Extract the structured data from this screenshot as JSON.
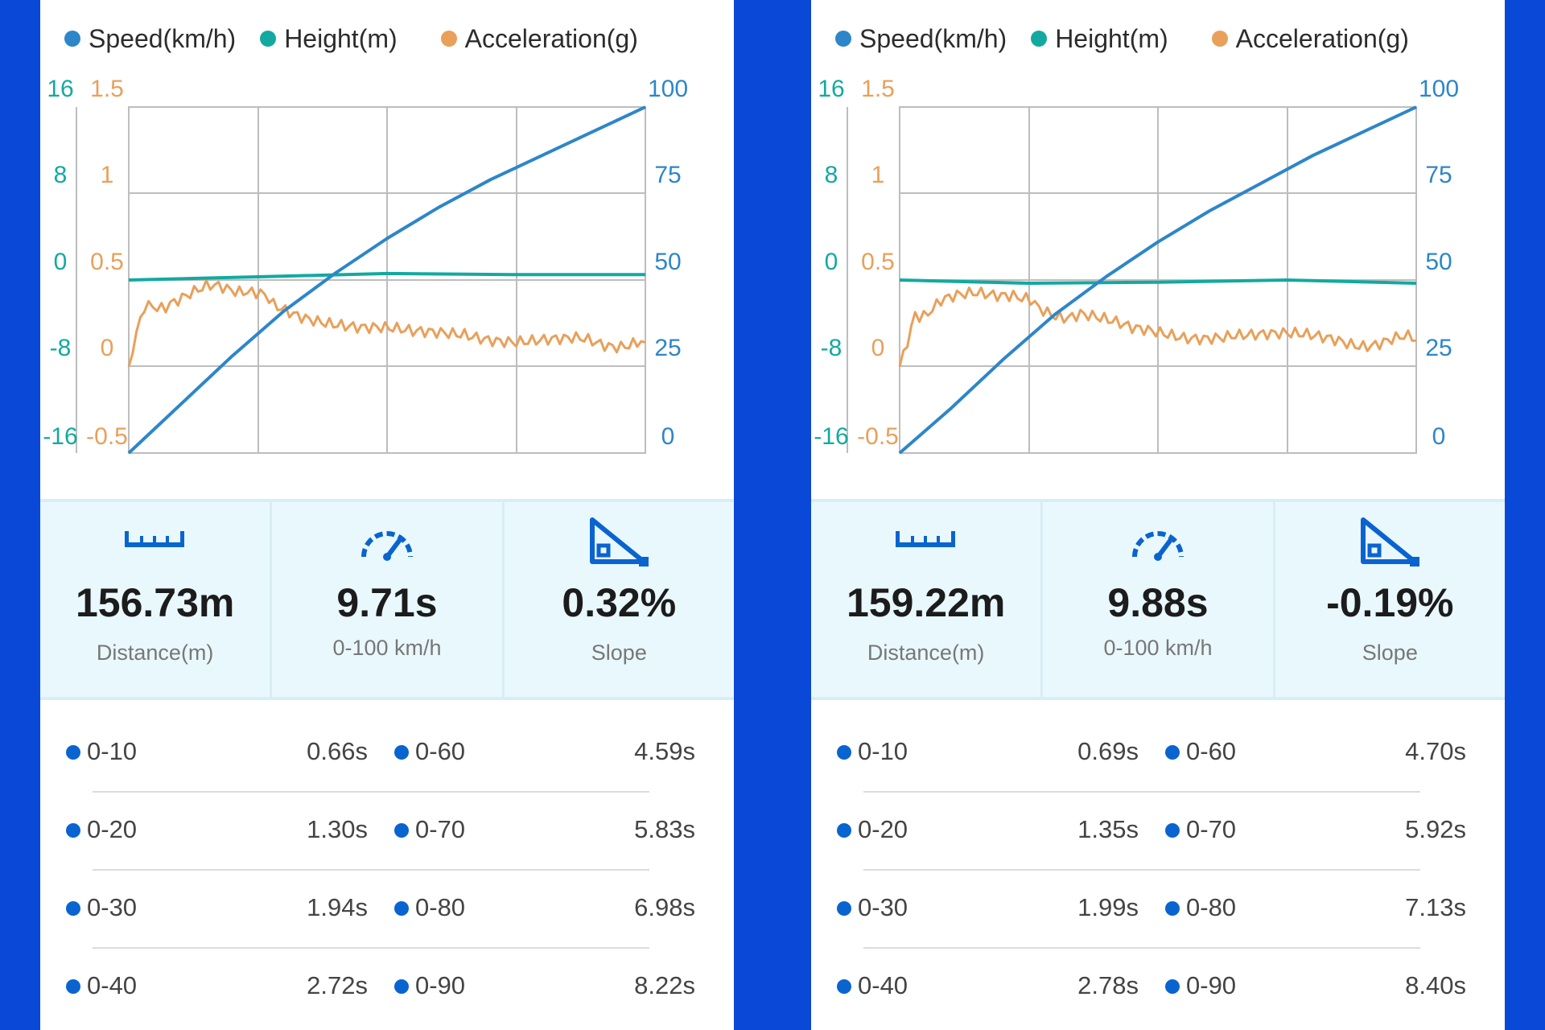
{
  "colors": {
    "speed": "#2d86c8",
    "height": "#13a9a1",
    "acceleration": "#e8a05a",
    "accent_blue": "#0a64cf",
    "background_blue": "#0a48d8"
  },
  "legend": {
    "speed": "Speed(km/h)",
    "height": "Height(m)",
    "acceleration": "Acceleration(g)"
  },
  "axes": {
    "height_ticks": [
      "16",
      "8",
      "0",
      "-8",
      "-16"
    ],
    "accel_ticks": [
      "1.5",
      "1",
      "0.5",
      "0",
      "-0.5"
    ],
    "speed_ticks": [
      "100",
      "75",
      "50",
      "25",
      "0"
    ]
  },
  "panels": [
    {
      "distance": "156.73m",
      "distance_label": "Distance(m)",
      "time": "9.71s",
      "time_label": "0-100 km/h",
      "slope": "0.32%",
      "slope_label": "Slope",
      "splits": [
        {
          "l_label": "0-10",
          "l_val": "0.66s",
          "r_label": "0-60",
          "r_val": "4.59s"
        },
        {
          "l_label": "0-20",
          "l_val": "1.30s",
          "r_label": "0-70",
          "r_val": "5.83s"
        },
        {
          "l_label": "0-30",
          "l_val": "1.94s",
          "r_label": "0-80",
          "r_val": "6.98s"
        },
        {
          "l_label": "0-40",
          "l_val": "2.72s",
          "r_label": "0-90",
          "r_val": "8.22s"
        }
      ]
    },
    {
      "distance": "159.22m",
      "distance_label": "Distance(m)",
      "time": "9.88s",
      "time_label": "0-100 km/h",
      "slope": "-0.19%",
      "slope_label": "Slope",
      "splits": [
        {
          "l_label": "0-10",
          "l_val": "0.69s",
          "r_label": "0-60",
          "r_val": "4.70s"
        },
        {
          "l_label": "0-20",
          "l_val": "1.35s",
          "r_label": "0-70",
          "r_val": "5.92s"
        },
        {
          "l_label": "0-30",
          "l_val": "1.99s",
          "r_label": "0-80",
          "r_val": "7.13s"
        },
        {
          "l_label": "0-40",
          "l_val": "2.78s",
          "r_label": "0-90",
          "r_val": "8.40s"
        }
      ]
    }
  ],
  "chart_data": [
    {
      "type": "line",
      "legend_position": "top",
      "grid": true,
      "x_divisions": 4,
      "y_left_outer": {
        "label": "Height(m)",
        "ylim": [
          -16,
          16
        ]
      },
      "y_left_inner": {
        "label": "Acceleration(g)",
        "ylim": [
          -0.5,
          1.5
        ]
      },
      "y_right": {
        "label": "Speed(km/h)",
        "ylim": [
          0,
          100
        ]
      },
      "series": [
        {
          "name": "Speed(km/h)",
          "axis": "speed",
          "x": [
            0,
            0.1,
            0.2,
            0.3,
            0.4,
            0.5,
            0.6,
            0.7,
            0.8,
            0.9,
            1.0
          ],
          "values": [
            0,
            14,
            28,
            41,
            52,
            62,
            71,
            79,
            86,
            93,
            100
          ]
        },
        {
          "name": "Height(m)",
          "axis": "height",
          "x": [
            0,
            0.25,
            0.5,
            0.75,
            1.0
          ],
          "values": [
            0,
            0.3,
            0.6,
            0.5,
            0.5
          ]
        },
        {
          "name": "Acceleration(g)",
          "axis": "acceleration",
          "x": [
            0,
            0.03,
            0.08,
            0.15,
            0.23,
            0.28,
            0.35,
            0.45,
            0.55,
            0.65,
            0.75,
            0.85,
            1.0
          ],
          "values": [
            0,
            0.32,
            0.38,
            0.44,
            0.46,
            0.35,
            0.3,
            0.22,
            0.18,
            0.2,
            0.16,
            0.14,
            0.14
          ]
        }
      ]
    },
    {
      "type": "line",
      "legend_position": "top",
      "grid": true,
      "x_divisions": 4,
      "y_left_outer": {
        "label": "Height(m)",
        "ylim": [
          -16,
          16
        ]
      },
      "y_left_inner": {
        "label": "Acceleration(g)",
        "ylim": [
          -0.5,
          1.5
        ]
      },
      "y_right": {
        "label": "Speed(km/h)",
        "ylim": [
          0,
          100
        ]
      },
      "series": [
        {
          "name": "Speed(km/h)",
          "axis": "speed",
          "x": [
            0,
            0.1,
            0.2,
            0.3,
            0.4,
            0.5,
            0.6,
            0.7,
            0.8,
            0.9,
            1.0
          ],
          "values": [
            0,
            13,
            27,
            40,
            51,
            61,
            70,
            78,
            86,
            93,
            100
          ]
        },
        {
          "name": "Height(m)",
          "axis": "height",
          "x": [
            0,
            0.25,
            0.5,
            0.75,
            1.0
          ],
          "values": [
            0,
            -0.3,
            -0.2,
            0,
            -0.3
          ]
        },
        {
          "name": "Acceleration(g)",
          "axis": "acceleration",
          "x": [
            0,
            0.03,
            0.08,
            0.15,
            0.22,
            0.27,
            0.35,
            0.45,
            0.55,
            0.65,
            0.75,
            0.85,
            1.0
          ],
          "values": [
            0,
            0.3,
            0.36,
            0.42,
            0.44,
            0.32,
            0.3,
            0.2,
            0.18,
            0.2,
            0.17,
            0.14,
            0.15
          ]
        }
      ]
    }
  ]
}
